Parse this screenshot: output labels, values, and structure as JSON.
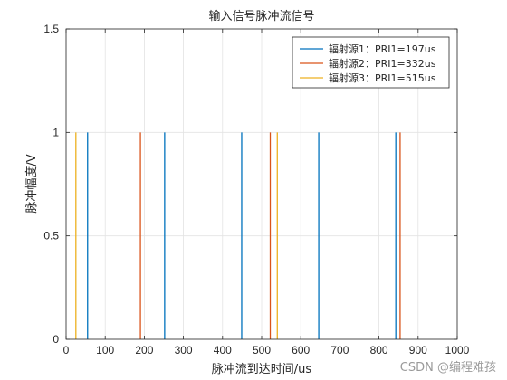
{
  "chart_data": {
    "type": "stem",
    "title": "输入信号脉冲流信号",
    "xlabel": "脉冲流到达时间/us",
    "ylabel": "脉冲幅度/V",
    "xlim": [
      0,
      1000
    ],
    "ylim": [
      0,
      1.5
    ],
    "xticks": [
      "0",
      "100",
      "200",
      "300",
      "400",
      "500",
      "600",
      "700",
      "800",
      "900",
      "1000"
    ],
    "yticks": [
      "0",
      "0.5",
      "1",
      "1.5"
    ],
    "grid": true,
    "legend_position": "top-right",
    "series": [
      {
        "name": "辐射源1：PRI1=197us",
        "color": "#0072BD",
        "x": [
          55,
          252,
          449,
          646,
          843
        ],
        "y": [
          1,
          1,
          1,
          1,
          1
        ]
      },
      {
        "name": "辐射源2：PRI1=332us",
        "color": "#D95319",
        "x": [
          190,
          522,
          854
        ],
        "y": [
          1,
          1,
          1
        ]
      },
      {
        "name": "辐射源3：PRI1=515us",
        "color": "#EDB120",
        "x": [
          25,
          540
        ],
        "y": [
          1,
          1
        ]
      }
    ]
  },
  "watermark": "CSDN @编程难孩"
}
